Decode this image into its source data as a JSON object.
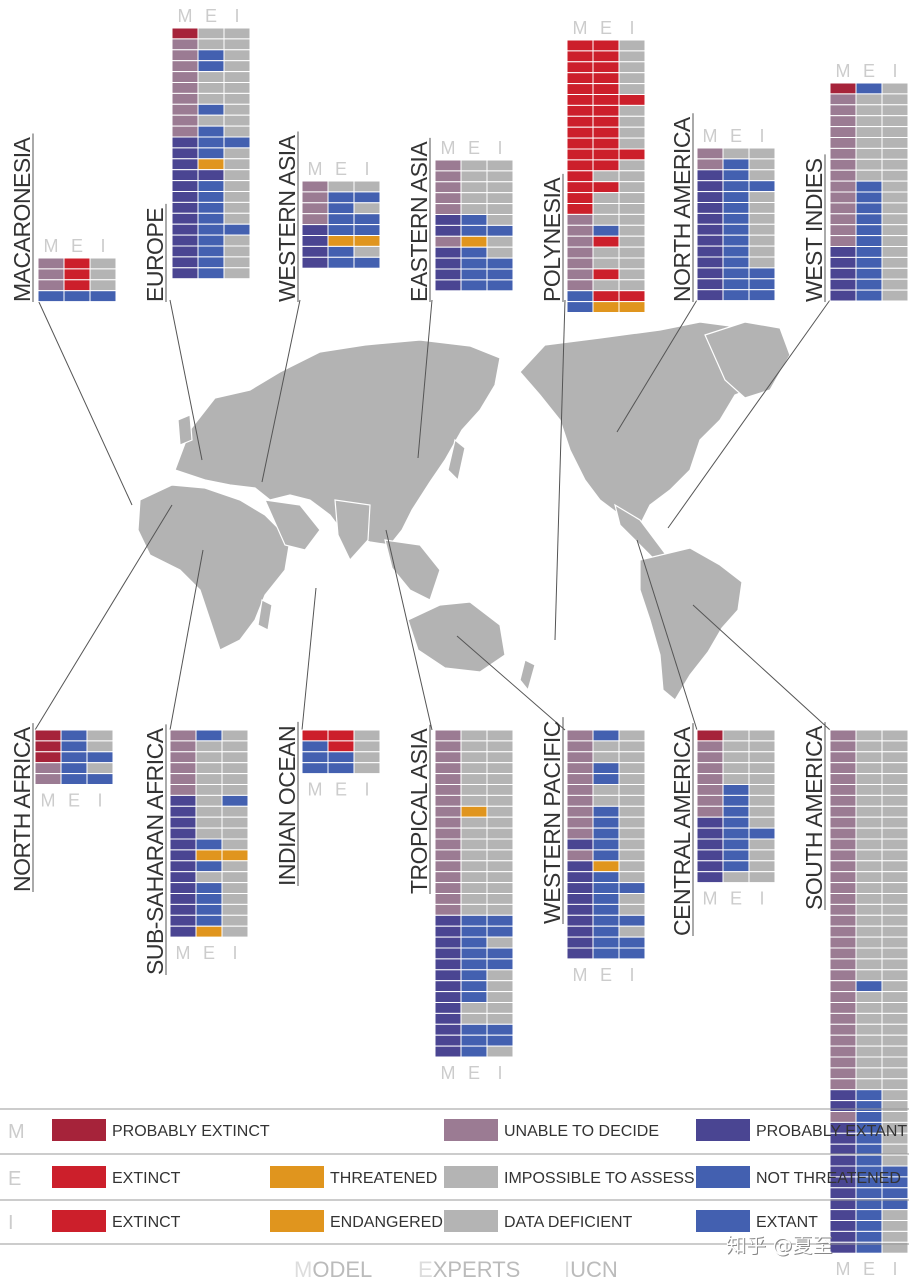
{
  "colors": {
    "probably_extinct": "#a6233a",
    "extinct": "#cc1f2b",
    "threatened": "#e0951e",
    "unable_to_decide": "#9b7b93",
    "impossible_to_assess": "#b4b4b4",
    "probably_extant": "#4a4592",
    "not_threatened": "#4360b0",
    "map": "#b3b3b3"
  },
  "chart_data": {
    "type": "heatmap",
    "columns": [
      "M",
      "E",
      "I"
    ],
    "codes": {
      "m": "M: probably extinct",
      "u": "M: unable to decide",
      "p": "M: probably extant",
      "x": "E/I: extinct",
      "t": "E/I: threatened / endangered",
      "g": "E/I: impossible to assess / data deficient",
      "n": "E/I: not threatened / extant"
    },
    "regions": [
      {
        "name": "MACARONESIA",
        "rows": [
          "uxg",
          "uxg",
          "uxg",
          "nnn"
        ]
      },
      {
        "name": "EUROPE",
        "rows": [
          "mgg",
          "ugg",
          "ung",
          "ung",
          "ugg",
          "ugg",
          "ugg",
          "ung",
          "ugg",
          "ung",
          "pnn",
          "png",
          "ptg",
          "ppg",
          "png",
          "png",
          "png",
          "png",
          "pnn",
          "png",
          "png",
          "png",
          "png"
        ]
      },
      {
        "name": "WESTERN ASIA",
        "rows": [
          "ugg",
          "unn",
          "ung",
          "unn",
          "pnn",
          "ptt",
          "png",
          "pnn"
        ]
      },
      {
        "name": "EASTERN ASIA",
        "rows": [
          "ugg",
          "ugg",
          "ugg",
          "ugg",
          "ugg",
          "png",
          "pnn",
          "utg",
          "png",
          "pnn",
          "pnn",
          "pnn"
        ]
      },
      {
        "name": "POLYNESIA",
        "rows": [
          "xxg",
          "xxg",
          "xxg",
          "xxg",
          "xxg",
          "xxx",
          "xxg",
          "xxg",
          "xxg",
          "xxg",
          "xxx",
          "xxg",
          "xgg",
          "xxg",
          "xgg",
          "xgg",
          "ugg",
          "ung",
          "uxg",
          "ugg",
          "ugg",
          "uxg",
          "ugg",
          "nxx",
          "ntt"
        ]
      },
      {
        "name": "NORTH AMERICA",
        "rows": [
          "ugg",
          "ung",
          "png",
          "pnn",
          "png",
          "png",
          "png",
          "png",
          "png",
          "png",
          "png",
          "pnn",
          "pnn",
          "pnn"
        ]
      },
      {
        "name": "WEST INDIES",
        "rows": [
          "mng",
          "ugg",
          "ugg",
          "ugg",
          "ugg",
          "ugg",
          "ugg",
          "ugg",
          "ugg",
          "ung",
          "ung",
          "ung",
          "ung",
          "ung",
          "ung",
          "png",
          "png",
          "png",
          "png",
          "png"
        ]
      },
      {
        "name": "NORTH AFRICA",
        "rows": [
          "mng",
          "mng",
          "mnn",
          "ung",
          "unn"
        ]
      },
      {
        "name": "SUB-SAHARAN AFRICA",
        "rows": [
          "ung",
          "ugg",
          "ugg",
          "ugg",
          "ugg",
          "ugg",
          "pgn",
          "pgg",
          "pgg",
          "pgg",
          "png",
          "ptt",
          "png",
          "pgg",
          "png",
          "png",
          "png",
          "png",
          "ptg"
        ]
      },
      {
        "name": "INDIAN OCEAN",
        "rows": [
          "xxg",
          "nxg",
          "nng",
          "nng"
        ]
      },
      {
        "name": "TROPICAL ASIA",
        "rows": [
          "ugg",
          "ugg",
          "ugg",
          "ugg",
          "ugg",
          "ugg",
          "ugg",
          "utg",
          "ugg",
          "ugg",
          "ugg",
          "ugg",
          "ugg",
          "ugg",
          "ugg",
          "ugg",
          "ugg",
          "pnn",
          "pnn",
          "png",
          "pnn",
          "pnn",
          "png",
          "png",
          "png",
          "pgg",
          "pgg",
          "pnn",
          "pnn",
          "png"
        ]
      },
      {
        "name": "WESTERN PACIFIC",
        "rows": [
          "ung",
          "ugg",
          "ugg",
          "ung",
          "ung",
          "ugg",
          "ugg",
          "ung",
          "ung",
          "ung",
          "png",
          "ung",
          "ptg",
          "png",
          "pnn",
          "png",
          "png",
          "pnn",
          "png",
          "pnn",
          "pnn"
        ]
      },
      {
        "name": "CENTRAL AMERICA",
        "rows": [
          "mgg",
          "ugg",
          "ugg",
          "ugg",
          "ugg",
          "ung",
          "ung",
          "ung",
          "png",
          "pnn",
          "png",
          "png",
          "png",
          "pgg"
        ]
      },
      {
        "name": "SOUTH AMERICA",
        "rows": [
          "ugg",
          "ugg",
          "ugg",
          "ugg",
          "ugg",
          "ugg",
          "ugg",
          "ugg",
          "ugg",
          "ugg",
          "ugg",
          "ugg",
          "ugg",
          "ugg",
          "ugg",
          "ugg",
          "ugg",
          "ugg",
          "ugg",
          "ugg",
          "ugg",
          "ugg",
          "ugg",
          "ung",
          "ugg",
          "ugg",
          "ugg",
          "ugg",
          "ugg",
          "ugg",
          "ugg",
          "ugg",
          "ugg",
          "png",
          "png",
          "ung",
          "png",
          "png",
          "png",
          "png",
          "pnn",
          "pnn",
          "pnn",
          "pnn",
          "png",
          "png",
          "png",
          "png"
        ]
      }
    ]
  },
  "legend": {
    "rows": [
      {
        "letter": "M",
        "items": [
          {
            "code": "m",
            "label": "PROBABLY EXTINCT"
          },
          {
            "code": "u",
            "label": "UNABLE TO DECIDE"
          },
          {
            "code": "p",
            "label": "PROBABLY EXTANT"
          }
        ]
      },
      {
        "letter": "E",
        "items": [
          {
            "code": "x",
            "label": "EXTINCT"
          },
          {
            "code": "t",
            "label": "THREATENED"
          },
          {
            "code": "g",
            "label": "IMPOSSIBLE TO ASSESS"
          },
          {
            "code": "n",
            "label": "NOT THREATENED"
          }
        ]
      },
      {
        "letter": "I",
        "items": [
          {
            "code": "x",
            "label": "EXTINCT"
          },
          {
            "code": "t",
            "label": "ENDANGERED"
          },
          {
            "code": "g",
            "label": "DATA DEFICIENT"
          },
          {
            "code": "n",
            "label": "EXTANT"
          }
        ]
      }
    ]
  },
  "footer": {
    "columns": [
      {
        "initial": "M",
        "rest": "ODEL"
      },
      {
        "initial": "E",
        "rest": "XPERTS"
      },
      {
        "initial": "I",
        "rest": "UCN"
      }
    ]
  },
  "watermark": "知乎 @夏至"
}
